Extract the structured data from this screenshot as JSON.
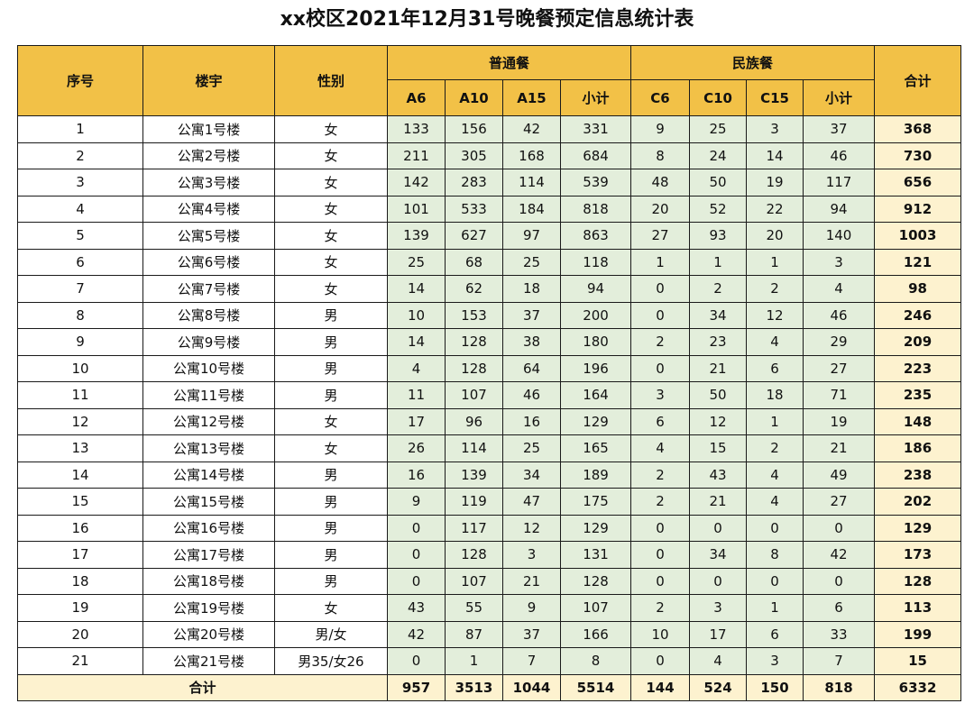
{
  "title": "xx校区2021年12月31号晚餐预定信息统计表",
  "headers": {
    "seq": "序号",
    "building": "楼宇",
    "gender": "性别",
    "regular": "普通餐",
    "ethnic": "民族餐",
    "total": "合计",
    "regular_sub": [
      "A6",
      "A10",
      "A15",
      "小计"
    ],
    "ethnic_sub": [
      "C6",
      "C10",
      "C15",
      "小计"
    ]
  },
  "rows": [
    {
      "seq": "1",
      "building": "公寓1号楼",
      "gender": "女",
      "vals": [
        "133",
        "156",
        "42",
        "331",
        "9",
        "25",
        "3",
        "37"
      ],
      "total": "368"
    },
    {
      "seq": "2",
      "building": "公寓2号楼",
      "gender": "女",
      "vals": [
        "211",
        "305",
        "168",
        "684",
        "8",
        "24",
        "14",
        "46"
      ],
      "total": "730"
    },
    {
      "seq": "3",
      "building": "公寓3号楼",
      "gender": "女",
      "vals": [
        "142",
        "283",
        "114",
        "539",
        "48",
        "50",
        "19",
        "117"
      ],
      "total": "656"
    },
    {
      "seq": "4",
      "building": "公寓4号楼",
      "gender": "女",
      "vals": [
        "101",
        "533",
        "184",
        "818",
        "20",
        "52",
        "22",
        "94"
      ],
      "total": "912"
    },
    {
      "seq": "5",
      "building": "公寓5号楼",
      "gender": "女",
      "vals": [
        "139",
        "627",
        "97",
        "863",
        "27",
        "93",
        "20",
        "140"
      ],
      "total": "1003"
    },
    {
      "seq": "6",
      "building": "公寓6号楼",
      "gender": "女",
      "vals": [
        "25",
        "68",
        "25",
        "118",
        "1",
        "1",
        "1",
        "3"
      ],
      "total": "121"
    },
    {
      "seq": "7",
      "building": "公寓7号楼",
      "gender": "女",
      "vals": [
        "14",
        "62",
        "18",
        "94",
        "0",
        "2",
        "2",
        "4"
      ],
      "total": "98"
    },
    {
      "seq": "8",
      "building": "公寓8号楼",
      "gender": "男",
      "vals": [
        "10",
        "153",
        "37",
        "200",
        "0",
        "34",
        "12",
        "46"
      ],
      "total": "246"
    },
    {
      "seq": "9",
      "building": "公寓9号楼",
      "gender": "男",
      "vals": [
        "14",
        "128",
        "38",
        "180",
        "2",
        "23",
        "4",
        "29"
      ],
      "total": "209"
    },
    {
      "seq": "10",
      "building": "公寓10号楼",
      "gender": "男",
      "vals": [
        "4",
        "128",
        "64",
        "196",
        "0",
        "21",
        "6",
        "27"
      ],
      "total": "223"
    },
    {
      "seq": "11",
      "building": "公寓11号楼",
      "gender": "男",
      "vals": [
        "11",
        "107",
        "46",
        "164",
        "3",
        "50",
        "18",
        "71"
      ],
      "total": "235"
    },
    {
      "seq": "12",
      "building": "公寓12号楼",
      "gender": "女",
      "vals": [
        "17",
        "96",
        "16",
        "129",
        "6",
        "12",
        "1",
        "19"
      ],
      "total": "148"
    },
    {
      "seq": "13",
      "building": "公寓13号楼",
      "gender": "女",
      "vals": [
        "26",
        "114",
        "25",
        "165",
        "4",
        "15",
        "2",
        "21"
      ],
      "total": "186"
    },
    {
      "seq": "14",
      "building": "公寓14号楼",
      "gender": "男",
      "vals": [
        "16",
        "139",
        "34",
        "189",
        "2",
        "43",
        "4",
        "49"
      ],
      "total": "238"
    },
    {
      "seq": "15",
      "building": "公寓15号楼",
      "gender": "男",
      "vals": [
        "9",
        "119",
        "47",
        "175",
        "2",
        "21",
        "4",
        "27"
      ],
      "total": "202"
    },
    {
      "seq": "16",
      "building": "公寓16号楼",
      "gender": "男",
      "vals": [
        "0",
        "117",
        "12",
        "129",
        "0",
        "0",
        "0",
        "0"
      ],
      "total": "129"
    },
    {
      "seq": "17",
      "building": "公寓17号楼",
      "gender": "男",
      "vals": [
        "0",
        "128",
        "3",
        "131",
        "0",
        "34",
        "8",
        "42"
      ],
      "total": "173"
    },
    {
      "seq": "18",
      "building": "公寓18号楼",
      "gender": "男",
      "vals": [
        "0",
        "107",
        "21",
        "128",
        "0",
        "0",
        "0",
        "0"
      ],
      "total": "128"
    },
    {
      "seq": "19",
      "building": "公寓19号楼",
      "gender": "女",
      "vals": [
        "43",
        "55",
        "9",
        "107",
        "2",
        "3",
        "1",
        "6"
      ],
      "total": "113"
    },
    {
      "seq": "20",
      "building": "公寓20号楼",
      "gender": "男/女",
      "vals": [
        "42",
        "87",
        "37",
        "166",
        "10",
        "17",
        "6",
        "33"
      ],
      "total": "199"
    },
    {
      "seq": "21",
      "building": "公寓21号楼",
      "gender": "男35/女26",
      "vals": [
        "0",
        "1",
        "7",
        "8",
        "0",
        "4",
        "3",
        "7"
      ],
      "total": "15"
    }
  ],
  "footer": {
    "label": "合计",
    "vals": [
      "957",
      "3513",
      "1044",
      "5514",
      "144",
      "524",
      "150",
      "818"
    ],
    "total": "6332"
  },
  "colors": {
    "header": "#f2c147",
    "number_cells": "#e3eedb",
    "total_cells": "#fdf2cf"
  }
}
